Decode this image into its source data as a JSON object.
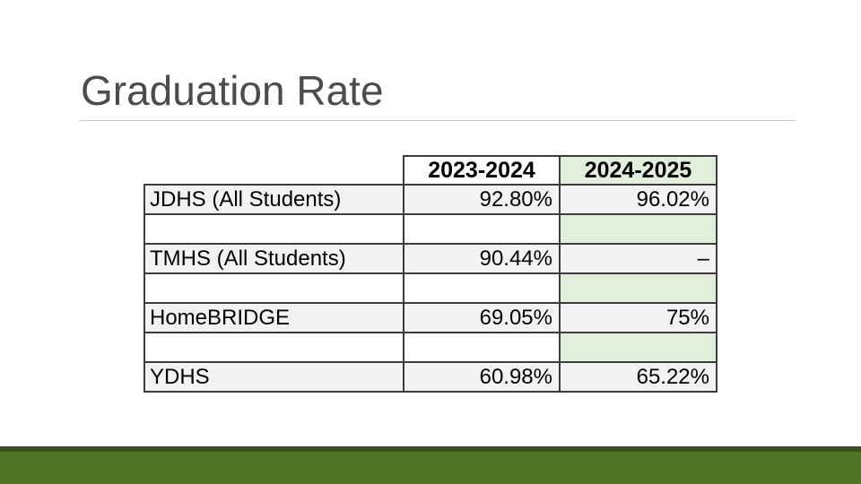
{
  "slide": {
    "title": "Graduation Rate",
    "colors": {
      "title_text": "#4c4c4c",
      "footer_main_green": "#507527",
      "footer_dark_green": "#3a4f1d",
      "highlight_cell_green": "#e2efda",
      "row_shade_gray": "#f2f2f2",
      "table_border": "#3c3c3c"
    },
    "table": {
      "columns": [
        "",
        "2023-2024",
        "2024-2025"
      ],
      "rows": [
        {
          "label": "JDHS (All Students)",
          "y2324": "92.80%",
          "y2425": "96.02%"
        },
        {
          "label": "",
          "y2324": "",
          "y2425": ""
        },
        {
          "label": "TMHS (All Students)",
          "y2324": "90.44%",
          "y2425": "–"
        },
        {
          "label": "",
          "y2324": "",
          "y2425": ""
        },
        {
          "label": "HomeBRIDGE",
          "y2324": "69.05%",
          "y2425": "75%"
        },
        {
          "label": "",
          "y2324": "",
          "y2425": ""
        },
        {
          "label": "YDHS",
          "y2324": "60.98%",
          "y2425": "65.22%"
        }
      ]
    }
  }
}
